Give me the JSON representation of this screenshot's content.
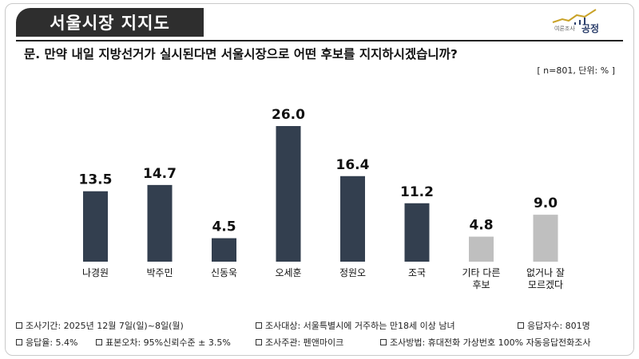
{
  "title": "서울시장 지지도",
  "logo": {
    "small": "여론조사",
    "big": "공정"
  },
  "question": "문. 만약 내일 지방선거가 실시된다면 서울시장으로 어떤 후보를 지지하시겠습니까?",
  "unit_note": "[ n=801, 단위: % ]",
  "colors": {
    "bar_dark": "#333f4f",
    "bar_light": "#bfbfbf",
    "title_bg": "#2e2e2e"
  },
  "chart_data": {
    "type": "bar",
    "categories": [
      [
        "나경원"
      ],
      [
        "박주민"
      ],
      [
        "신동욱"
      ],
      [
        "오세훈"
      ],
      [
        "정원오"
      ],
      [
        "조국"
      ],
      [
        "기타 다른",
        "후보"
      ],
      [
        "없거나 잘",
        "모르겠다"
      ]
    ],
    "values": [
      13.5,
      14.7,
      4.5,
      26.0,
      16.4,
      11.2,
      4.8,
      9.0
    ],
    "value_labels": [
      "13.5",
      "14.7",
      "4.5",
      "26.0",
      "16.4",
      "11.2",
      "4.8",
      "9.0"
    ],
    "bar_colors": [
      "#333f4f",
      "#333f4f",
      "#333f4f",
      "#333f4f",
      "#333f4f",
      "#333f4f",
      "#bfbfbf",
      "#bfbfbf"
    ],
    "ylim": [
      0,
      26.0
    ],
    "grid": false,
    "title": "",
    "xlabel": "",
    "ylabel": ""
  },
  "footer": {
    "period": "조사기간: 2025년 12월 7일(일)~8일(월)",
    "target": "조사대상: 서울특별시에 거주하는 만18세 이상 남녀",
    "respondents": "응답자수: 801명",
    "response_rate": "응답율: 5.4%",
    "margin_error": "표본오차: 95%신뢰수준 ± 3.5%",
    "sponsor": "조사주관: 펜앤마이크",
    "method": "조사방법: 휴대전화 가상번호 100% 자동응답전화조사"
  }
}
